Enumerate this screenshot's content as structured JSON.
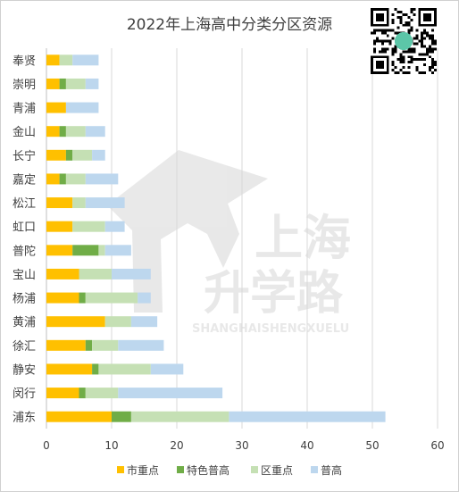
{
  "chart_data": {
    "type": "bar",
    "orientation": "horizontal",
    "stacked": true,
    "title": "2022年上海高中分类分区资源",
    "categories": [
      "奉贤",
      "崇明",
      "青浦",
      "金山",
      "长宁",
      "嘉定",
      "松江",
      "虹口",
      "普陀",
      "宝山",
      "杨浦",
      "黄浦",
      "徐汇",
      "静安",
      "闵行",
      "浦东"
    ],
    "series": [
      {
        "name": "市重点",
        "color": "#FFC000",
        "values": [
          2,
          2,
          3,
          2,
          3,
          2,
          4,
          4,
          4,
          5,
          5,
          9,
          6,
          7,
          5,
          10
        ]
      },
      {
        "name": "特色普高",
        "color": "#70AD47",
        "values": [
          0,
          1,
          0,
          1,
          1,
          1,
          0,
          0,
          4,
          0,
          1,
          0,
          1,
          1,
          1,
          3
        ]
      },
      {
        "name": "区重点",
        "color": "#C5E0B4",
        "values": [
          2,
          3,
          0,
          3,
          3,
          3,
          2,
          5,
          1,
          5,
          8,
          4,
          4,
          8,
          5,
          15
        ]
      },
      {
        "name": "普高",
        "color": "#BDD7EE",
        "values": [
          4,
          2,
          5,
          3,
          2,
          5,
          6,
          3,
          4,
          6,
          2,
          4,
          7,
          5,
          16,
          24
        ]
      }
    ],
    "xlim": [
      0,
      60
    ],
    "xticks": [
      0,
      10,
      20,
      30,
      40,
      50,
      60
    ],
    "grid": true,
    "legend_position": "bottom"
  },
  "watermark": {
    "line1": "上海",
    "line2": "升学路",
    "line3": "SHANGHAISHENGXUELU"
  }
}
